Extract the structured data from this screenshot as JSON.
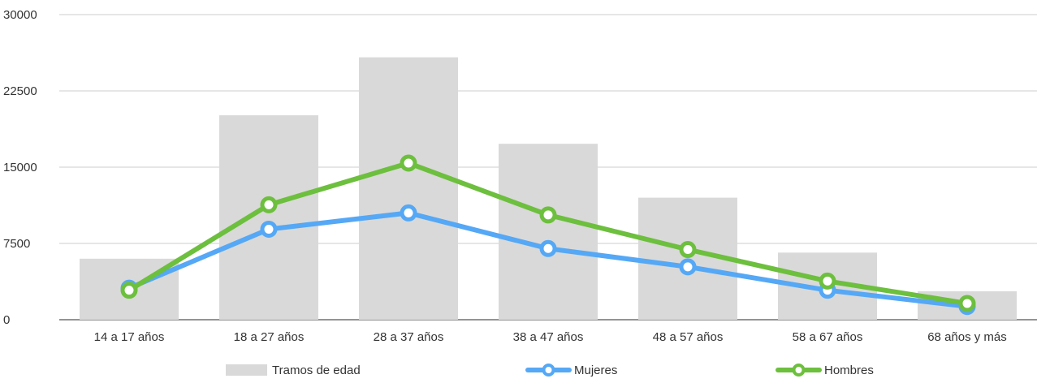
{
  "chart_data": {
    "type": "bar",
    "categories": [
      "14 a 17 años",
      "18 a 27 años",
      "28 a 37 años",
      "38 a 47 años",
      "48 a 57 años",
      "58 a 67 años",
      "68 años y más"
    ],
    "ylim": [
      0,
      30000
    ],
    "y_ticks": [
      0,
      7500,
      15000,
      22500,
      30000
    ],
    "y_tick_labels": [
      "0",
      "7500",
      "15000",
      "22500",
      "30000"
    ],
    "grid": true,
    "legend_position": "bottom",
    "series": [
      {
        "name": "Tramos de edad",
        "kind": "bar",
        "color": "#d9d9d9",
        "values": [
          6000,
          20100,
          25800,
          17300,
          12000,
          6600,
          2800
        ]
      },
      {
        "name": "Mujeres",
        "kind": "line",
        "color": "#55a8f5",
        "values": [
          3100,
          8900,
          10500,
          7000,
          5200,
          2900,
          1300
        ]
      },
      {
        "name": "Hombres",
        "kind": "line",
        "color": "#6dbf3e",
        "values": [
          2900,
          11300,
          15400,
          10300,
          6900,
          3800,
          1600
        ]
      }
    ]
  }
}
